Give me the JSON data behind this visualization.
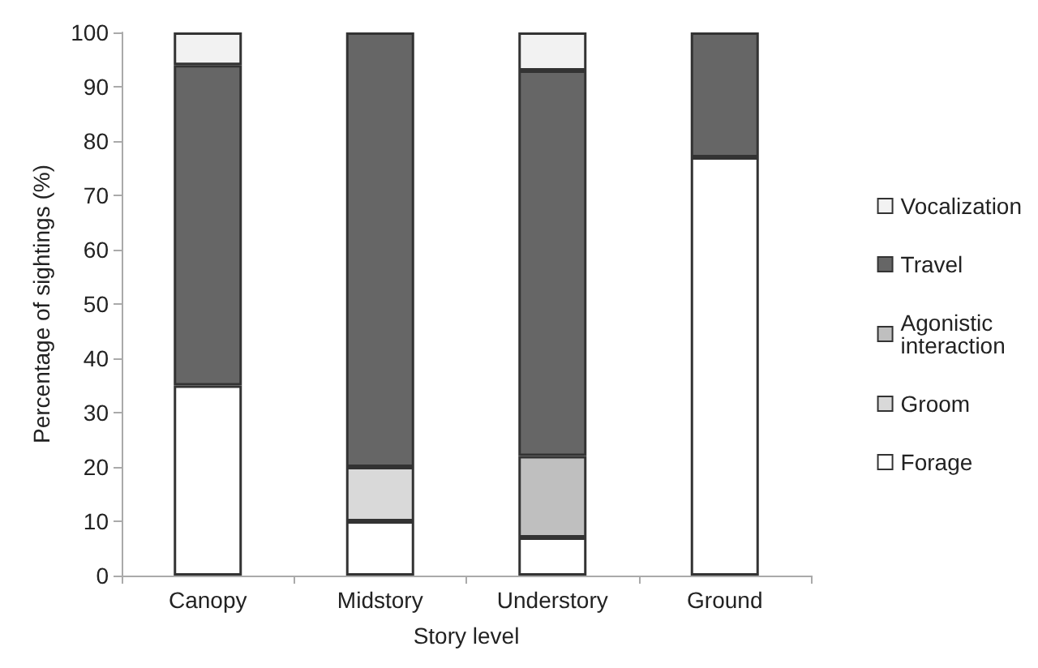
{
  "chart_data": {
    "type": "bar",
    "stacked": true,
    "xlabel": "Story level",
    "ylabel": "Percentage of sightings (%)",
    "categories": [
      "Canopy",
      "Midstory",
      "Understory",
      "Ground"
    ],
    "series": [
      {
        "name": "Forage",
        "color": "#ffffff",
        "values": [
          35,
          10,
          7,
          77
        ]
      },
      {
        "name": "Groom",
        "color": "#d9d9d9",
        "values": [
          null,
          10,
          null,
          null
        ]
      },
      {
        "name": "Agonistic interaction",
        "color": "#bfbfbf",
        "values": [
          null,
          null,
          15,
          null
        ]
      },
      {
        "name": "Travel",
        "color": "#666666",
        "values": [
          59,
          80,
          71,
          23
        ]
      },
      {
        "name": "Vocalization",
        "color": "#f2f2f2",
        "values": [
          6,
          null,
          7,
          null
        ]
      }
    ],
    "ylim": [
      0,
      100
    ],
    "yticks": [
      0,
      10,
      20,
      30,
      40,
      50,
      60,
      70,
      80,
      90,
      100
    ],
    "grid": false,
    "legend": "right"
  }
}
